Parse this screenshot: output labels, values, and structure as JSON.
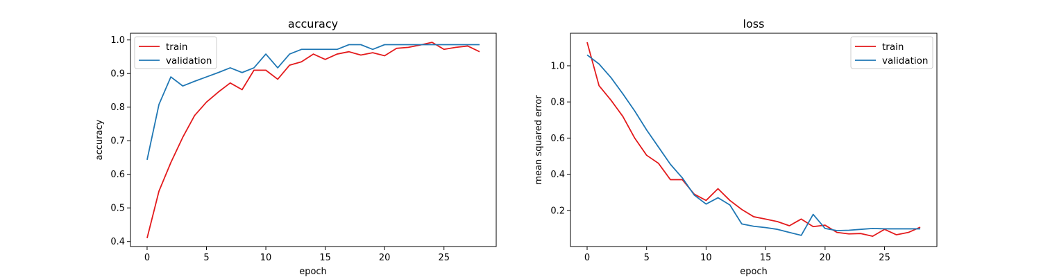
{
  "chart_data": [
    {
      "type": "line",
      "title": "accuracy",
      "xlabel": "epoch",
      "ylabel": "accuracy",
      "xlim": [
        -1.4,
        29.4
      ],
      "ylim": [
        0.385,
        1.02
      ],
      "xticks": [
        0,
        5,
        10,
        15,
        20,
        25
      ],
      "yticks": [
        0.4,
        0.5,
        0.6,
        0.7,
        0.8,
        0.9,
        1.0
      ],
      "xtick_labels": [
        "0",
        "5",
        "10",
        "15",
        "20",
        "25"
      ],
      "ytick_labels": [
        "0.4",
        "0.5",
        "0.6",
        "0.7",
        "0.8",
        "0.9",
        "1.0"
      ],
      "legend_position": "upper-left",
      "x": [
        0,
        1,
        2,
        3,
        4,
        5,
        6,
        7,
        8,
        9,
        10,
        11,
        12,
        13,
        14,
        15,
        16,
        17,
        18,
        19,
        20,
        21,
        22,
        23,
        24,
        25,
        26,
        27,
        28
      ],
      "series": [
        {
          "name": "train",
          "color": "#e31a1c",
          "values": [
            0.41,
            0.55,
            0.635,
            0.71,
            0.775,
            0.815,
            0.845,
            0.872,
            0.852,
            0.91,
            0.91,
            0.883,
            0.925,
            0.935,
            0.958,
            0.942,
            0.958,
            0.965,
            0.955,
            0.962,
            0.953,
            0.975,
            0.978,
            0.985,
            0.993,
            0.972,
            0.978,
            0.982,
            0.965
          ]
        },
        {
          "name": "validation",
          "color": "#1f77b4",
          "values": [
            0.643,
            0.808,
            0.89,
            0.863,
            0.877,
            0.89,
            0.903,
            0.917,
            0.903,
            0.917,
            0.958,
            0.917,
            0.958,
            0.972,
            0.972,
            0.972,
            0.972,
            0.986,
            0.986,
            0.972,
            0.986,
            0.986,
            0.986,
            0.986,
            0.986,
            0.986,
            0.986,
            0.986,
            0.986
          ]
        }
      ]
    },
    {
      "type": "line",
      "title": "loss",
      "xlabel": "epoch",
      "ylabel": "mean squared error",
      "xlim": [
        -1.4,
        29.4
      ],
      "ylim": [
        0.0,
        1.18
      ],
      "xticks": [
        0,
        5,
        10,
        15,
        20,
        25
      ],
      "yticks": [
        0.2,
        0.4,
        0.6,
        0.8,
        1.0
      ],
      "xtick_labels": [
        "0",
        "5",
        "10",
        "15",
        "20",
        "25"
      ],
      "ytick_labels": [
        "0.2",
        "0.4",
        "0.6",
        "0.8",
        "1.0"
      ],
      "legend_position": "upper-right",
      "x": [
        0,
        1,
        2,
        3,
        4,
        5,
        6,
        7,
        8,
        9,
        10,
        11,
        12,
        13,
        14,
        15,
        16,
        17,
        18,
        19,
        20,
        21,
        22,
        23,
        24,
        25,
        26,
        27,
        28
      ],
      "series": [
        {
          "name": "train",
          "color": "#e31a1c",
          "values": [
            1.13,
            0.89,
            0.81,
            0.72,
            0.6,
            0.505,
            0.46,
            0.37,
            0.37,
            0.29,
            0.255,
            0.32,
            0.255,
            0.205,
            0.165,
            0.152,
            0.138,
            0.115,
            0.152,
            0.11,
            0.118,
            0.078,
            0.07,
            0.072,
            0.057,
            0.095,
            0.065,
            0.078,
            0.107
          ]
        },
        {
          "name": "validation",
          "color": "#1f77b4",
          "values": [
            1.06,
            1.01,
            0.935,
            0.845,
            0.75,
            0.645,
            0.55,
            0.455,
            0.38,
            0.285,
            0.235,
            0.27,
            0.23,
            0.125,
            0.112,
            0.105,
            0.095,
            0.078,
            0.062,
            0.178,
            0.1,
            0.088,
            0.09,
            0.095,
            0.1,
            0.098,
            0.098,
            0.098,
            0.098
          ]
        }
      ]
    }
  ]
}
